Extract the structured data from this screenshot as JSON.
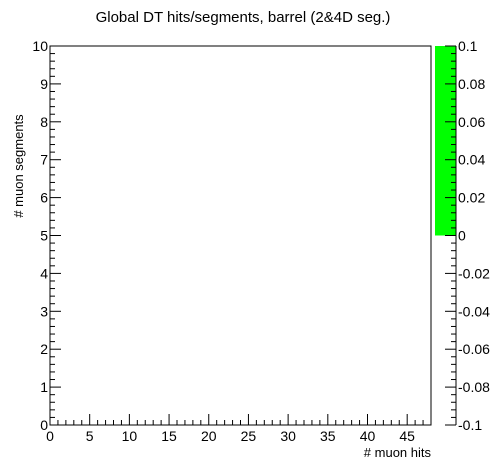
{
  "chart_data": {
    "type": "heatmap",
    "title": "Global DT hits/segments, barrel (2&4D seg.)",
    "xlabel": "# muon hits",
    "ylabel": "# muon segments",
    "xlim": [
      0,
      48
    ],
    "ylim": [
      0,
      10
    ],
    "x_major_ticks": [
      0,
      5,
      10,
      15,
      20,
      25,
      30,
      35,
      40,
      45
    ],
    "x_tick_labels": [
      "0",
      "5",
      "10",
      "15",
      "20",
      "25",
      "30",
      "35",
      "40",
      "45"
    ],
    "x_minor_step": 1,
    "y_major_ticks": [
      0,
      1,
      2,
      3,
      4,
      5,
      6,
      7,
      8,
      9,
      10
    ],
    "y_tick_labels": [
      "0",
      "1",
      "2",
      "3",
      "4",
      "5",
      "6",
      "7",
      "8",
      "9",
      "10"
    ],
    "y_minor_step": 0.2,
    "grid": false,
    "bins": [],
    "colorbar": {
      "zlim": [
        -0.1,
        0.1
      ],
      "ticks": [
        0.1,
        0.08,
        0.06,
        0.04,
        0.02,
        0,
        -0.02,
        -0.04,
        -0.06,
        -0.08,
        -0.1
      ],
      "tick_labels": [
        "0.1",
        "0.08",
        "0.06",
        "0.04",
        "0.02",
        "0",
        "-0.02",
        "-0.04",
        "-0.06",
        "-0.08",
        "-0.1"
      ],
      "filled_range": [
        0,
        0.1
      ],
      "fill_color": "#00ff00"
    },
    "frame_color": "#000000",
    "background_color": "#ffffff"
  }
}
